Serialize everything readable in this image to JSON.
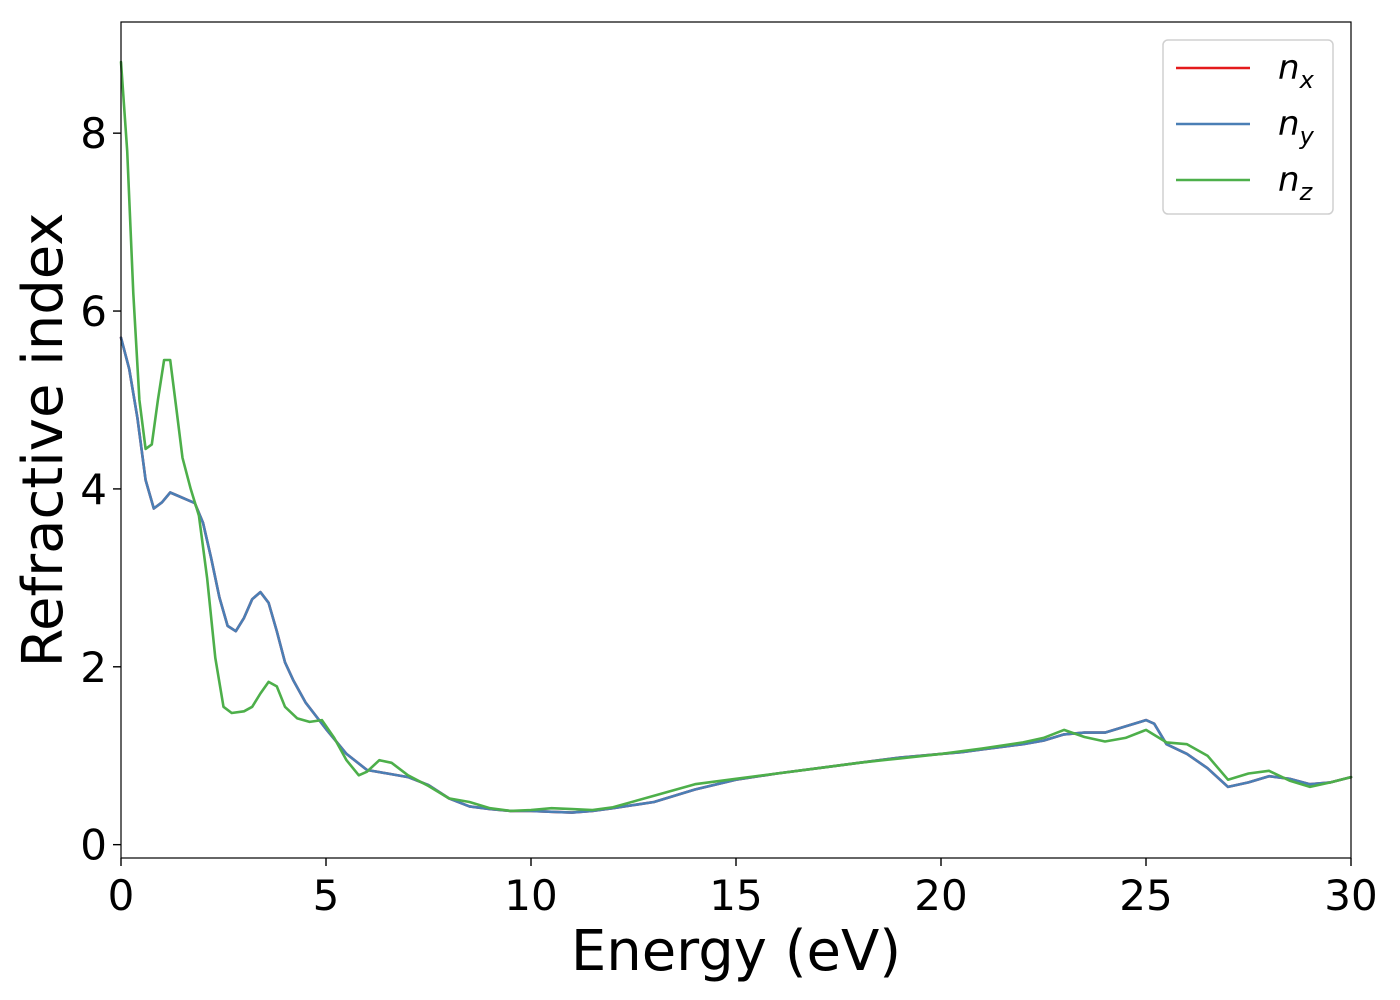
{
  "chart_data": {
    "type": "line",
    "title": "",
    "xlabel": "Energy (eV)",
    "ylabel": "Refractive index",
    "xlim": [
      0,
      30
    ],
    "ylim": [
      -0.15,
      9.25
    ],
    "xticks": [
      0,
      5,
      10,
      15,
      20,
      25,
      30
    ],
    "yticks": [
      0,
      2,
      4,
      6,
      8
    ],
    "xtick_labels": [
      "0",
      "5",
      "10",
      "15",
      "20",
      "25",
      "30"
    ],
    "ytick_labels": [
      "0",
      "2",
      "4",
      "6",
      "8"
    ],
    "grid": false,
    "legend_position": "top-right",
    "series": [
      {
        "name": "n",
        "subscript": "x",
        "color": "#e41a1c",
        "x": [
          0,
          0.2,
          0.4,
          0.6,
          0.8,
          1.0,
          1.2,
          1.4,
          1.6,
          1.8,
          2.0,
          2.2,
          2.4,
          2.6,
          2.8,
          3.0,
          3.2,
          3.4,
          3.6,
          3.8,
          4.0,
          4.2,
          4.5,
          5.0,
          5.5,
          6.0,
          6.5,
          7.0,
          7.5,
          8.0,
          8.5,
          9.0,
          9.5,
          10.0,
          10.5,
          11.0,
          11.5,
          12.0,
          13.0,
          14.0,
          15.0,
          16.0,
          17.0,
          18.0,
          19.0,
          20.0,
          20.5,
          21.0,
          21.5,
          22.0,
          22.5,
          23.0,
          23.5,
          24.0,
          24.5,
          25.0,
          25.2,
          25.5,
          26.0,
          26.5,
          27.0,
          27.5,
          28.0,
          28.5,
          29.0,
          29.5,
          30.0
        ],
        "y": [
          5.7,
          5.35,
          4.8,
          4.1,
          3.78,
          3.85,
          3.96,
          3.92,
          3.88,
          3.84,
          3.62,
          3.22,
          2.78,
          2.46,
          2.4,
          2.55,
          2.76,
          2.84,
          2.72,
          2.4,
          2.05,
          1.85,
          1.6,
          1.3,
          1.02,
          0.84,
          0.8,
          0.76,
          0.67,
          0.52,
          0.43,
          0.4,
          0.38,
          0.38,
          0.37,
          0.36,
          0.38,
          0.41,
          0.48,
          0.62,
          0.73,
          0.8,
          0.86,
          0.92,
          0.98,
          1.02,
          1.04,
          1.07,
          1.1,
          1.13,
          1.17,
          1.24,
          1.26,
          1.26,
          1.33,
          1.4,
          1.36,
          1.13,
          1.02,
          0.86,
          0.65,
          0.7,
          0.77,
          0.74,
          0.68,
          0.7,
          0.76
        ]
      },
      {
        "name": "n",
        "subscript": "y",
        "color": "#4a7fb5",
        "x": [
          0,
          0.2,
          0.4,
          0.6,
          0.8,
          1.0,
          1.2,
          1.4,
          1.6,
          1.8,
          2.0,
          2.2,
          2.4,
          2.6,
          2.8,
          3.0,
          3.2,
          3.4,
          3.6,
          3.8,
          4.0,
          4.2,
          4.5,
          5.0,
          5.5,
          6.0,
          6.5,
          7.0,
          7.5,
          8.0,
          8.5,
          9.0,
          9.5,
          10.0,
          10.5,
          11.0,
          11.5,
          12.0,
          13.0,
          14.0,
          15.0,
          16.0,
          17.0,
          18.0,
          19.0,
          20.0,
          20.5,
          21.0,
          21.5,
          22.0,
          22.5,
          23.0,
          23.5,
          24.0,
          24.5,
          25.0,
          25.2,
          25.5,
          26.0,
          26.5,
          27.0,
          27.5,
          28.0,
          28.5,
          29.0,
          29.5,
          30.0
        ],
        "y": [
          5.7,
          5.35,
          4.8,
          4.1,
          3.78,
          3.85,
          3.96,
          3.92,
          3.88,
          3.84,
          3.62,
          3.22,
          2.78,
          2.46,
          2.4,
          2.55,
          2.76,
          2.84,
          2.72,
          2.4,
          2.05,
          1.85,
          1.6,
          1.3,
          1.02,
          0.84,
          0.8,
          0.76,
          0.67,
          0.52,
          0.43,
          0.4,
          0.38,
          0.38,
          0.37,
          0.36,
          0.38,
          0.41,
          0.48,
          0.62,
          0.73,
          0.8,
          0.86,
          0.92,
          0.98,
          1.02,
          1.04,
          1.07,
          1.1,
          1.13,
          1.17,
          1.24,
          1.26,
          1.26,
          1.33,
          1.4,
          1.36,
          1.13,
          1.02,
          0.86,
          0.65,
          0.7,
          0.77,
          0.74,
          0.68,
          0.7,
          0.76
        ]
      },
      {
        "name": "n",
        "subscript": "z",
        "color": "#4daf4a",
        "x": [
          0,
          0.15,
          0.3,
          0.45,
          0.6,
          0.75,
          0.9,
          1.05,
          1.2,
          1.35,
          1.5,
          1.7,
          1.9,
          2.1,
          2.3,
          2.5,
          2.7,
          3.0,
          3.2,
          3.4,
          3.6,
          3.8,
          4.0,
          4.3,
          4.6,
          4.9,
          5.2,
          5.5,
          5.8,
          6.0,
          6.3,
          6.6,
          7.0,
          7.5,
          8.0,
          8.5,
          9.0,
          9.5,
          10.0,
          10.5,
          11.0,
          11.5,
          12.0,
          13.0,
          14.0,
          15.0,
          16.0,
          17.0,
          18.0,
          19.0,
          20.0,
          21.0,
          22.0,
          22.5,
          23.0,
          23.5,
          24.0,
          24.5,
          25.0,
          25.5,
          26.0,
          26.5,
          27.0,
          27.5,
          28.0,
          28.5,
          29.0,
          29.5,
          30.0
        ],
        "y": [
          8.8,
          7.8,
          6.2,
          5.0,
          4.45,
          4.5,
          5.0,
          5.45,
          5.45,
          4.9,
          4.35,
          4.0,
          3.7,
          3.0,
          2.1,
          1.55,
          1.48,
          1.5,
          1.55,
          1.7,
          1.83,
          1.78,
          1.55,
          1.42,
          1.38,
          1.4,
          1.2,
          0.95,
          0.78,
          0.82,
          0.95,
          0.92,
          0.78,
          0.66,
          0.52,
          0.48,
          0.41,
          0.38,
          0.39,
          0.41,
          0.4,
          0.39,
          0.42,
          0.55,
          0.68,
          0.74,
          0.8,
          0.86,
          0.92,
          0.97,
          1.02,
          1.08,
          1.15,
          1.2,
          1.29,
          1.21,
          1.16,
          1.2,
          1.29,
          1.15,
          1.13,
          1.0,
          0.73,
          0.8,
          0.83,
          0.72,
          0.65,
          0.7,
          0.76
        ]
      }
    ]
  }
}
